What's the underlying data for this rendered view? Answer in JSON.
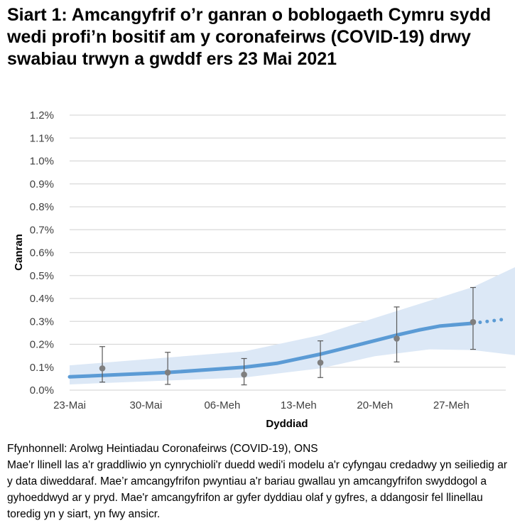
{
  "title": "Siart 1: Amcangyfrif o’r ganran o boblogaeth Cymru sydd wedi profi’n bositif am y coronafeirws (COVID-19) drwy swabiau trwyn a gwddf ers 23 Mai 2021",
  "source": "Ffynhonnell: Arolwg Heintiadau Coronafeirws (COVID-19), ONS",
  "note": "Mae'r llinell las a'r graddliwio yn cynrychioli'r duedd wedi'i modelu a'r cyfyngau credadwy yn seiliedig ar y data diweddaraf. Mae’r amcangyfrifon pwyntiau a'r bariau gwallau yn amcangyfrifon swyddogol a gyhoeddwyd ar y pryd. Mae'r amcangyfrifon ar gyfer dyddiau olaf y gyfres, a ddangosir fel llinellau toredig yn y siart, yn fwy ansicr.",
  "chart_data": {
    "type": "line",
    "xlabel": "Dyddiad",
    "ylabel": "Canran",
    "ylim": [
      0,
      1.2
    ],
    "yticks": [
      "0.0%",
      "0.1%",
      "0.2%",
      "0.3%",
      "0.4%",
      "0.5%",
      "0.6%",
      "0.7%",
      "0.8%",
      "0.9%",
      "1.0%",
      "1.1%",
      "1.2%"
    ],
    "xticks": [
      {
        "date": "2021-05-23",
        "label": "23-Mai"
      },
      {
        "date": "2021-05-30",
        "label": "30-Mai"
      },
      {
        "date": "2021-06-06",
        "label": "06-Meh"
      },
      {
        "date": "2021-06-13",
        "label": "13-Meh"
      },
      {
        "date": "2021-06-20",
        "label": "20-Meh"
      },
      {
        "date": "2021-06-27",
        "label": "27-Meh"
      }
    ],
    "grid": true,
    "colors": {
      "trend": "#5b9bd5",
      "band": "#dce8f6",
      "points": "#7f7f7f",
      "errorbars": "#595959",
      "grid": "#d9d9d9"
    },
    "trend": [
      {
        "x": "2021-05-23",
        "y": 0.058
      },
      {
        "x": "2021-06-01",
        "y": 0.077
      },
      {
        "x": "2021-06-08",
        "y": 0.1
      },
      {
        "x": "2021-06-11",
        "y": 0.117
      },
      {
        "x": "2021-06-15",
        "y": 0.157
      },
      {
        "x": "2021-06-19",
        "y": 0.204
      },
      {
        "x": "2021-06-22",
        "y": 0.24
      },
      {
        "x": "2021-06-24",
        "y": 0.262
      },
      {
        "x": "2021-06-26",
        "y": 0.28
      },
      {
        "x": "2021-06-29",
        "y": 0.292
      }
    ],
    "trend_uncertain": [
      {
        "x": "2021-06-29",
        "y": 0.292
      },
      {
        "x": "2021-07-02",
        "y": 0.31
      }
    ],
    "band_upper": [
      {
        "x": "2021-05-23",
        "y": 0.108
      },
      {
        "x": "2021-06-08",
        "y": 0.169
      },
      {
        "x": "2021-06-15",
        "y": 0.24
      },
      {
        "x": "2021-06-23",
        "y": 0.36
      },
      {
        "x": "2021-06-29",
        "y": 0.45
      },
      {
        "x": "2021-07-03",
        "y": 0.54
      }
    ],
    "band_lower": [
      {
        "x": "2021-05-23",
        "y": 0.025
      },
      {
        "x": "2021-06-08",
        "y": 0.055
      },
      {
        "x": "2021-06-15",
        "y": 0.095
      },
      {
        "x": "2021-06-20",
        "y": 0.148
      },
      {
        "x": "2021-06-25",
        "y": 0.178
      },
      {
        "x": "2021-06-29",
        "y": 0.175
      },
      {
        "x": "2021-07-03",
        "y": 0.152
      }
    ],
    "points": [
      {
        "x": "2021-05-26",
        "y": 0.095,
        "lo": 0.035,
        "hi": 0.19
      },
      {
        "x": "2021-06-01",
        "y": 0.077,
        "lo": 0.025,
        "hi": 0.165
      },
      {
        "x": "2021-06-08",
        "y": 0.068,
        "lo": 0.023,
        "hi": 0.138
      },
      {
        "x": "2021-06-15",
        "y": 0.12,
        "lo": 0.055,
        "hi": 0.215
      },
      {
        "x": "2021-06-22",
        "y": 0.225,
        "lo": 0.123,
        "hi": 0.363
      },
      {
        "x": "2021-06-29",
        "y": 0.297,
        "lo": 0.178,
        "hi": 0.448
      }
    ]
  }
}
